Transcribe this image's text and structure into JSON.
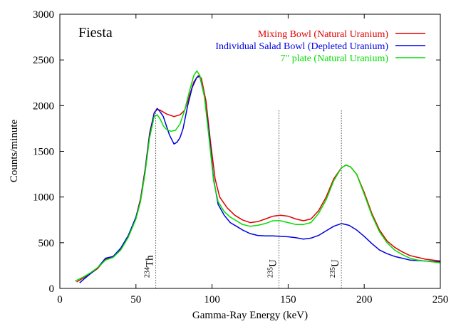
{
  "chart_data": {
    "type": "line",
    "title": "Fiesta",
    "xlabel": "Gamma-Ray Energy (keV)",
    "ylabel": "Counts/minute",
    "xlim": [
      0,
      250
    ],
    "ylim": [
      0,
      3000
    ],
    "xticks": [
      0,
      50,
      100,
      150,
      200,
      250
    ],
    "yticks": [
      0,
      500,
      1000,
      1500,
      2000,
      2500,
      3000
    ],
    "legend_position": "top-right",
    "grid": false,
    "series": [
      {
        "name": "Mixing Bowl (Natural Uranium)",
        "color": "#e00000",
        "points": [
          [
            11,
            70
          ],
          [
            15,
            110
          ],
          [
            20,
            160
          ],
          [
            25,
            220
          ],
          [
            30,
            320
          ],
          [
            35,
            350
          ],
          [
            40,
            430
          ],
          [
            45,
            570
          ],
          [
            50,
            780
          ],
          [
            53,
            980
          ],
          [
            56,
            1300
          ],
          [
            59,
            1700
          ],
          [
            62,
            1920
          ],
          [
            64,
            1960
          ],
          [
            66,
            1950
          ],
          [
            70,
            1910
          ],
          [
            75,
            1880
          ],
          [
            79,
            1900
          ],
          [
            82,
            1950
          ],
          [
            85,
            2100
          ],
          [
            88,
            2260
          ],
          [
            91,
            2330
          ],
          [
            93,
            2300
          ],
          [
            96,
            2050
          ],
          [
            99,
            1600
          ],
          [
            102,
            1200
          ],
          [
            105,
            1000
          ],
          [
            110,
            880
          ],
          [
            115,
            800
          ],
          [
            120,
            750
          ],
          [
            125,
            720
          ],
          [
            130,
            730
          ],
          [
            135,
            760
          ],
          [
            140,
            790
          ],
          [
            145,
            800
          ],
          [
            150,
            790
          ],
          [
            155,
            760
          ],
          [
            160,
            740
          ],
          [
            165,
            760
          ],
          [
            170,
            850
          ],
          [
            175,
            1000
          ],
          [
            180,
            1200
          ],
          [
            185,
            1320
          ],
          [
            188,
            1350
          ],
          [
            191,
            1330
          ],
          [
            195,
            1250
          ],
          [
            200,
            1050
          ],
          [
            205,
            820
          ],
          [
            210,
            640
          ],
          [
            215,
            520
          ],
          [
            220,
            450
          ],
          [
            225,
            400
          ],
          [
            230,
            360
          ],
          [
            235,
            340
          ],
          [
            240,
            320
          ],
          [
            245,
            310
          ],
          [
            250,
            300
          ]
        ]
      },
      {
        "name": "Individual Salad Bowl (Depleted Uranium)",
        "color": "#0000e0",
        "points": [
          [
            13,
            60
          ],
          [
            15,
            90
          ],
          [
            20,
            160
          ],
          [
            25,
            230
          ],
          [
            30,
            330
          ],
          [
            35,
            350
          ],
          [
            40,
            440
          ],
          [
            45,
            580
          ],
          [
            50,
            780
          ],
          [
            53,
            960
          ],
          [
            56,
            1280
          ],
          [
            59,
            1680
          ],
          [
            62,
            1920
          ],
          [
            64,
            1970
          ],
          [
            66,
            1930
          ],
          [
            68,
            1880
          ],
          [
            70,
            1780
          ],
          [
            72,
            1680
          ],
          [
            75,
            1580
          ],
          [
            77,
            1600
          ],
          [
            79,
            1650
          ],
          [
            81,
            1750
          ],
          [
            84,
            2000
          ],
          [
            87,
            2200
          ],
          [
            90,
            2310
          ],
          [
            92,
            2320
          ],
          [
            95,
            2100
          ],
          [
            98,
            1700
          ],
          [
            101,
            1200
          ],
          [
            104,
            920
          ],
          [
            108,
            800
          ],
          [
            112,
            720
          ],
          [
            116,
            680
          ],
          [
            120,
            640
          ],
          [
            125,
            600
          ],
          [
            130,
            580
          ],
          [
            135,
            575
          ],
          [
            140,
            575
          ],
          [
            145,
            570
          ],
          [
            150,
            565
          ],
          [
            155,
            555
          ],
          [
            160,
            540
          ],
          [
            165,
            550
          ],
          [
            170,
            580
          ],
          [
            175,
            630
          ],
          [
            180,
            680
          ],
          [
            185,
            710
          ],
          [
            190,
            690
          ],
          [
            195,
            640
          ],
          [
            200,
            570
          ],
          [
            205,
            490
          ],
          [
            210,
            420
          ],
          [
            215,
            380
          ],
          [
            220,
            350
          ],
          [
            225,
            330
          ],
          [
            230,
            310
          ],
          [
            240,
            300
          ],
          [
            250,
            290
          ]
        ]
      },
      {
        "name": "7\" plate (Natural Uranium)",
        "color": "#00dd00",
        "points": [
          [
            10,
            80
          ],
          [
            15,
            120
          ],
          [
            20,
            170
          ],
          [
            25,
            230
          ],
          [
            30,
            310
          ],
          [
            35,
            340
          ],
          [
            40,
            420
          ],
          [
            45,
            560
          ],
          [
            50,
            760
          ],
          [
            53,
            950
          ],
          [
            56,
            1260
          ],
          [
            59,
            1650
          ],
          [
            62,
            1880
          ],
          [
            64,
            1900
          ],
          [
            66,
            1850
          ],
          [
            68,
            1780
          ],
          [
            70,
            1740
          ],
          [
            73,
            1720
          ],
          [
            76,
            1730
          ],
          [
            79,
            1800
          ],
          [
            82,
            1950
          ],
          [
            85,
            2150
          ],
          [
            88,
            2330
          ],
          [
            90,
            2380
          ],
          [
            92,
            2330
          ],
          [
            95,
            2100
          ],
          [
            98,
            1650
          ],
          [
            101,
            1180
          ],
          [
            104,
            950
          ],
          [
            108,
            840
          ],
          [
            112,
            780
          ],
          [
            116,
            740
          ],
          [
            120,
            700
          ],
          [
            125,
            680
          ],
          [
            130,
            690
          ],
          [
            135,
            710
          ],
          [
            140,
            740
          ],
          [
            145,
            740
          ],
          [
            150,
            720
          ],
          [
            155,
            700
          ],
          [
            160,
            700
          ],
          [
            165,
            720
          ],
          [
            170,
            820
          ],
          [
            175,
            970
          ],
          [
            180,
            1180
          ],
          [
            185,
            1320
          ],
          [
            188,
            1350
          ],
          [
            191,
            1330
          ],
          [
            195,
            1250
          ],
          [
            200,
            1030
          ],
          [
            205,
            800
          ],
          [
            210,
            620
          ],
          [
            215,
            500
          ],
          [
            220,
            420
          ],
          [
            225,
            370
          ],
          [
            230,
            330
          ],
          [
            235,
            310
          ],
          [
            240,
            300
          ],
          [
            245,
            290
          ],
          [
            250,
            280
          ]
        ]
      }
    ],
    "annotations": [
      {
        "sup": "234",
        "text": "Th",
        "x": 63
      },
      {
        "sup": "235",
        "text": "U",
        "x": 144
      },
      {
        "sup": "235",
        "text": "U",
        "x": 185
      }
    ]
  }
}
